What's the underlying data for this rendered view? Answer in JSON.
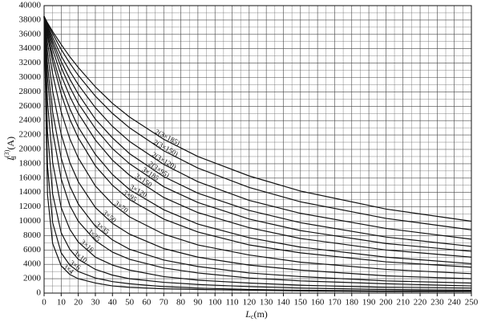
{
  "chart_data": {
    "type": "line",
    "y_label": {
      "main": "I",
      "sup": "(3)",
      "sub": "d",
      "unit": "(A)"
    },
    "x_label": {
      "main": "L",
      "sub": "c",
      "unit": "(m)"
    },
    "x": [
      0,
      2,
      5,
      10,
      15,
      20,
      30,
      40,
      50,
      70,
      90,
      120,
      150,
      200,
      250
    ],
    "series": [
      {
        "name": "2(3×185)",
        "color": "#111111",
        "values": [
          38500,
          37600,
          36400,
          34600,
          32900,
          31400,
          28700,
          26400,
          24500,
          21400,
          19000,
          16300,
          14200,
          11700,
          10000
        ]
      },
      {
        "name": "2(3×150)",
        "color": "#111111",
        "values": [
          38500,
          37500,
          36100,
          33900,
          32000,
          30300,
          27400,
          25000,
          23000,
          19800,
          17400,
          14700,
          12700,
          10400,
          8800
        ]
      },
      {
        "name": "2(3×120)",
        "color": "#111111",
        "values": [
          38500,
          37300,
          35600,
          33000,
          30900,
          29000,
          25800,
          23200,
          21100,
          17900,
          15500,
          12900,
          11100,
          9000,
          7500
        ]
      },
      {
        "name": "2(3×95)",
        "color": "#111111",
        "values": [
          38500,
          37100,
          35100,
          32200,
          29800,
          27700,
          24200,
          21600,
          19400,
          16200,
          13900,
          11500,
          9800,
          7800,
          6500
        ]
      },
      {
        "name": "3×185",
        "color": "#111111",
        "values": [
          38500,
          36800,
          34600,
          31400,
          28700,
          26400,
          22900,
          20100,
          18000,
          14800,
          12600,
          10300,
          8700,
          6900,
          5800
        ]
      },
      {
        "name": "3×150",
        "color": "#111111",
        "values": [
          38500,
          36500,
          33900,
          30300,
          27400,
          25000,
          21300,
          18500,
          16400,
          13300,
          11200,
          9100,
          7600,
          6000,
          5000
        ]
      },
      {
        "name": "3×120",
        "color": "#111111",
        "values": [
          38500,
          36100,
          33000,
          28900,
          25700,
          23100,
          19300,
          16500,
          14400,
          11600,
          9600,
          7700,
          6400,
          5000,
          4100
        ]
      },
      {
        "name": "3×95",
        "color": "#111111",
        "values": [
          38500,
          35700,
          32200,
          27700,
          24200,
          21600,
          17700,
          15000,
          13000,
          10300,
          8500,
          6700,
          5600,
          4350,
          3600
        ]
      },
      {
        "name": "3×70",
        "color": "#111111",
        "values": [
          38500,
          34800,
          30500,
          25200,
          21500,
          18800,
          14900,
          12400,
          10600,
          8200,
          6700,
          5300,
          4300,
          3300,
          2700
        ]
      },
      {
        "name": "3×50",
        "color": "#111111",
        "values": [
          38500,
          33500,
          28100,
          22100,
          18200,
          15500,
          11900,
          9700,
          8200,
          6200,
          5000,
          3900,
          3200,
          2400,
          2000
        ]
      },
      {
        "name": "3×35",
        "color": "#111111",
        "values": [
          38500,
          31800,
          25200,
          18800,
          14900,
          12400,
          9300,
          7400,
          6100,
          4600,
          3700,
          2800,
          2300,
          1700,
          1400
        ]
      },
      {
        "name": "3×25",
        "color": "#111111",
        "values": [
          38500,
          29900,
          22500,
          15900,
          12200,
          10000,
          7300,
          5700,
          4700,
          3500,
          2800,
          2100,
          1700,
          1300,
          1000
        ]
      },
      {
        "name": "3×16",
        "color": "#111111",
        "values": [
          38500,
          26700,
          18200,
          11900,
          8900,
          7100,
          5000,
          3900,
          3200,
          2300,
          1800,
          1400,
          1100,
          800,
          700
        ]
      },
      {
        "name": "3×10",
        "color": "#111111",
        "values": [
          38500,
          22500,
          13800,
          8400,
          6100,
          4700,
          3300,
          2500,
          2000,
          1500,
          1200,
          900,
          700,
          500,
          400
        ]
      },
      {
        "name": "3×6",
        "color": "#111111",
        "values": [
          38500,
          17700,
          9800,
          5600,
          3900,
          3000,
          2100,
          1600,
          1300,
          900,
          700,
          500,
          400,
          300,
          300
        ]
      },
      {
        "name": "3×4",
        "color": "#111111",
        "values": [
          38500,
          13700,
          6900,
          3800,
          2600,
          2000,
          1400,
          1000,
          800,
          600,
          500,
          400,
          300,
          200,
          200
        ]
      }
    ],
    "xlim": [
      0,
      250
    ],
    "xticks": [
      0,
      10,
      20,
      30,
      40,
      50,
      60,
      70,
      80,
      90,
      100,
      110,
      120,
      130,
      140,
      150,
      160,
      170,
      180,
      190,
      200,
      210,
      220,
      230,
      240,
      250
    ],
    "ylim": [
      0,
      40000
    ],
    "yticks": [
      0,
      2000,
      4000,
      6000,
      8000,
      10000,
      12000,
      14000,
      16000,
      18000,
      20000,
      22000,
      24000,
      26000,
      28000,
      30000,
      32000,
      34000,
      36000,
      38000,
      40000
    ],
    "grid": true
  }
}
